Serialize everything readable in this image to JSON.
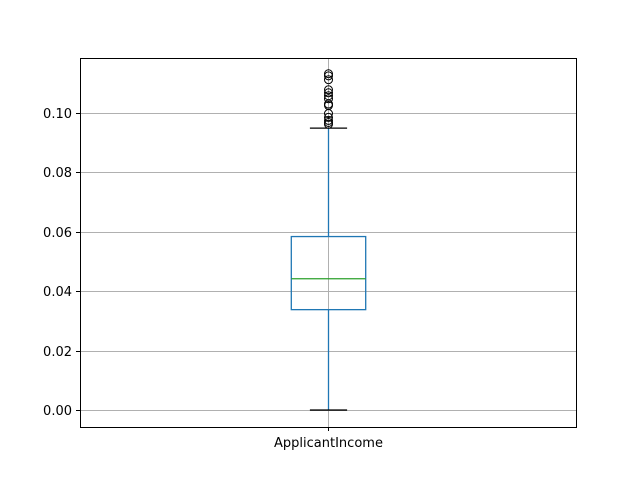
{
  "chart_data": {
    "type": "box",
    "title": "",
    "xlabel": "",
    "ylabel": "",
    "categories": [
      "ApplicantIncome"
    ],
    "ylim": [
      -0.0057,
      0.1185
    ],
    "yticks": [
      0.0,
      0.02,
      0.04,
      0.06,
      0.08,
      0.1
    ],
    "ytick_labels": [
      "0.00",
      "0.02",
      "0.04",
      "0.06",
      "0.08",
      "0.10"
    ],
    "grid": true,
    "boxes": [
      {
        "name": "ApplicantIncome",
        "whisker_low": 0.0,
        "q1": 0.0338,
        "median": 0.0442,
        "q3": 0.0584,
        "whisker_high": 0.0949,
        "outliers": [
          0.0962,
          0.0968,
          0.0975,
          0.0985,
          0.0998,
          0.1025,
          0.103,
          0.1048,
          0.1058,
          0.1068,
          0.1078,
          0.1112,
          0.1125,
          0.1132
        ]
      }
    ],
    "colors": {
      "box": "#1f77b4",
      "median": "#2ca02c",
      "whisker_cap": "#000000",
      "outlier": "#000000",
      "grid": "#b0b0b0",
      "axes": "#000000"
    }
  }
}
